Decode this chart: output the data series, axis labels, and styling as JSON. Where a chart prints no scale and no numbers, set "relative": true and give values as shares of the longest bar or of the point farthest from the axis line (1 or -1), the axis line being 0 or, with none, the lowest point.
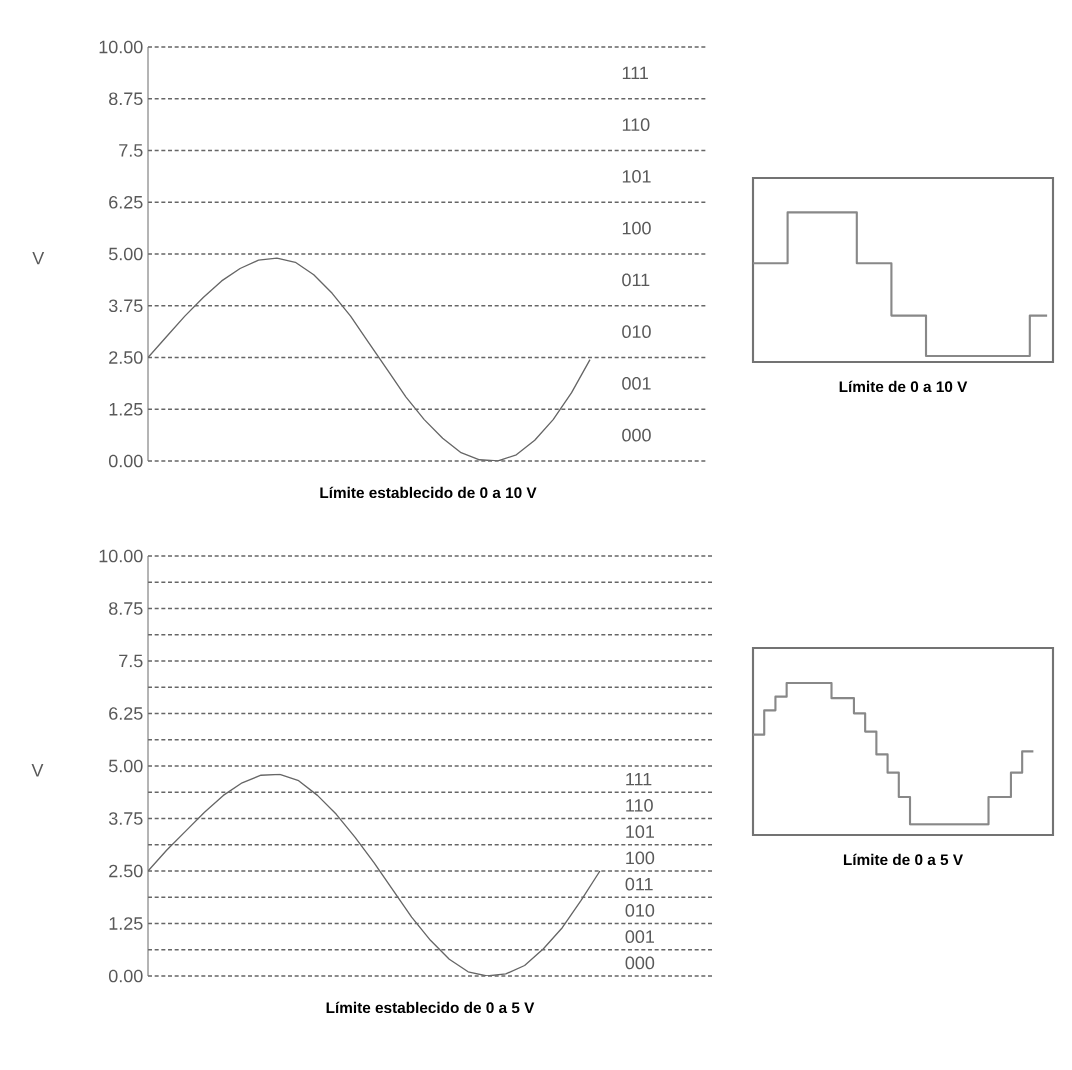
{
  "chart_data": [
    {
      "type": "line",
      "title": "Límite establecido de 0 a 10 V",
      "ylabel": "V",
      "categories": [
        null,
        null,
        null,
        null,
        null,
        null,
        null,
        null,
        null,
        null,
        null,
        null,
        null,
        null,
        null,
        null,
        null,
        null,
        null,
        null,
        null,
        null,
        null,
        null,
        null
      ],
      "series": [
        {
          "color": "#666666",
          "values": [
            2.5,
            3.0,
            3.5,
            3.95,
            4.35,
            4.65,
            4.85,
            4.9,
            4.8,
            4.5,
            4.05,
            3.5,
            2.85,
            2.2,
            1.55,
            1.0,
            0.55,
            0.2,
            0.03,
            0.0,
            0.15,
            0.5,
            1.0,
            1.65,
            2.45
          ]
        }
      ],
      "ylim": [
        0,
        10
      ],
      "yticks": [
        {
          "value": 0,
          "label": "0.00"
        },
        1.25,
        {
          "value": 2.5,
          "label": "2.50"
        },
        3.75,
        {
          "value": 5,
          "label": "5.00"
        },
        6.25,
        7.5,
        8.75,
        {
          "value": 10,
          "label": "10.00"
        }
      ],
      "grid": "y",
      "tick_labels": "y",
      "annotations": [
        "000",
        "001",
        "010",
        "011",
        "100",
        "101",
        "110",
        "111"
      ]
    },
    {
      "type": "line",
      "title": "Límite establecido de 0 a 5 V",
      "ylabel": "V",
      "categories": [
        null,
        null,
        null,
        null,
        null,
        null,
        null,
        null,
        null,
        null,
        null,
        null,
        null,
        null,
        null,
        null,
        null,
        null,
        null,
        null,
        null,
        null,
        null,
        null,
        null
      ],
      "series": [
        {
          "color": "#666666",
          "values": [
            2.5,
            3.0,
            3.45,
            3.9,
            4.3,
            4.6,
            4.78,
            4.8,
            4.65,
            4.3,
            3.85,
            3.3,
            2.7,
            2.05,
            1.4,
            0.85,
            0.4,
            0.1,
            0.0,
            0.05,
            0.25,
            0.65,
            1.15,
            1.8,
            2.5
          ]
        }
      ],
      "ylim": [
        0,
        10
      ],
      "yticks": [
        {
          "value": 0,
          "label": "0.00"
        },
        {
          "value": 0.625,
          "label": null
        },
        1.25,
        {
          "value": 1.875,
          "label": null
        },
        {
          "value": 2.5,
          "label": "2.50"
        },
        {
          "value": 3.125,
          "label": null
        },
        3.75,
        {
          "value": 4.375,
          "label": null
        },
        {
          "value": 5,
          "label": "5.00"
        },
        {
          "value": 5.625,
          "label": null
        },
        6.25,
        {
          "value": 6.875,
          "label": null
        },
        7.5,
        {
          "value": 8.125,
          "label": null
        },
        8.75,
        {
          "value": 9.375,
          "label": null
        },
        {
          "value": 10,
          "label": "10.00"
        }
      ],
      "grid": "y",
      "tick_labels": "y",
      "annotations": [
        "000",
        "001",
        "010",
        "011",
        "100",
        "101",
        "110",
        "111"
      ]
    },
    {
      "type": "step",
      "title": "Límite de 0 a 10 V",
      "relative": true,
      "tick_labels": false,
      "categories": [
        null,
        null,
        null,
        null,
        null,
        null,
        null,
        null,
        null,
        null,
        null,
        null,
        null,
        null,
        null,
        null,
        null,
        null
      ],
      "series": [
        {
          "color": "#888888",
          "values": [
            0.66,
            0.66,
            1,
            1,
            1,
            1,
            0.66,
            0.66,
            0.31,
            0.31,
            0.04,
            0.04,
            0.04,
            0.04,
            0.04,
            0.04,
            0.31,
            0.31
          ]
        }
      ]
    },
    {
      "type": "step",
      "title": "Límite de 0 a 5 V",
      "relative": true,
      "tick_labels": false,
      "categories": [
        null,
        null,
        null,
        null,
        null,
        null,
        null,
        null,
        null,
        null,
        null,
        null,
        null,
        null,
        null,
        null,
        null,
        null,
        null,
        null,
        null,
        null,
        null,
        null,
        null,
        null
      ],
      "series": [
        {
          "color": "#888888",
          "values": [
            0.66,
            0.82,
            0.91,
            1,
            1,
            1,
            1,
            0.9,
            0.9,
            0.8,
            0.68,
            0.53,
            0.41,
            0.25,
            0.07,
            0.07,
            0.07,
            0.07,
            0.07,
            0.07,
            0.07,
            0.25,
            0.25,
            0.41,
            0.55,
            0.55
          ]
        }
      ]
    }
  ]
}
